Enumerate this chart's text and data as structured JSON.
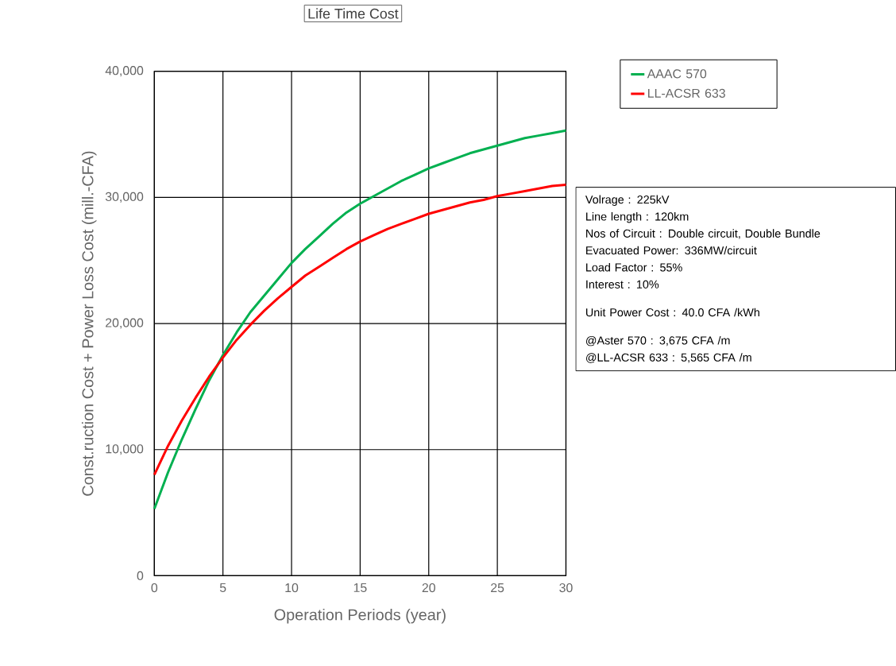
{
  "chart_data": {
    "type": "line",
    "title": "Life Time Cost",
    "xlabel": "Operation Periods (year)",
    "ylabel": "Const.ruction Cost + Power Loss Cost (mill.-CFA)",
    "x": [
      0,
      1,
      2,
      3,
      4,
      5,
      6,
      7,
      8,
      9,
      10,
      11,
      12,
      13,
      14,
      15,
      16,
      17,
      18,
      19,
      20,
      21,
      22,
      23,
      24,
      25,
      26,
      27,
      28,
      29,
      30
    ],
    "series": [
      {
        "name": "AAAC 570",
        "color": "#00b050",
        "values": [
          5300,
          8200,
          10800,
          13200,
          15500,
          17500,
          19300,
          20900,
          22200,
          23500,
          24800,
          25900,
          26900,
          27900,
          28800,
          29500,
          30100,
          30700,
          31300,
          31800,
          32300,
          32700,
          33100,
          33500,
          33800,
          34100,
          34400,
          34700,
          34900,
          35100,
          35300
        ]
      },
      {
        "name": "LL-ACSR 633",
        "color": "#ff0000",
        "values": [
          8000,
          10300,
          12300,
          14100,
          15800,
          17300,
          18700,
          19900,
          21000,
          22000,
          22900,
          23800,
          24500,
          25200,
          25900,
          26500,
          27000,
          27500,
          27900,
          28300,
          28700,
          29000,
          29300,
          29600,
          29800,
          30100,
          30300,
          30500,
          30700,
          30900,
          31000
        ]
      }
    ],
    "xlim": [
      0,
      30
    ],
    "xticks": [
      0,
      5,
      10,
      15,
      20,
      25,
      30
    ],
    "ylim": [
      0,
      40000
    ],
    "yticks": [
      0,
      {
        "value": 10000,
        "label": "10,000"
      },
      {
        "value": 20000,
        "label": "20,000"
      },
      {
        "value": 30000,
        "label": "30,000"
      },
      {
        "value": 40000,
        "label": "40,000"
      }
    ],
    "grid": true,
    "legend": "top right",
    "line_style": "solid",
    "marker": "none",
    "annotations": [
      "Volrage : 225kV",
      "Line length : 120km",
      "Nos of Circuit : Double circuit, Double Bundle",
      "Evacuated Power: 336MW/circuit",
      "Load Factor  : 55%",
      "Interest : 10%",
      "Unit Power Cost : 40.0 CFA /kWh",
      "@Aster 570    : 3,675 CFA /m",
      "@LL-ACSR 633 : 5,565 CFA /m"
    ]
  }
}
